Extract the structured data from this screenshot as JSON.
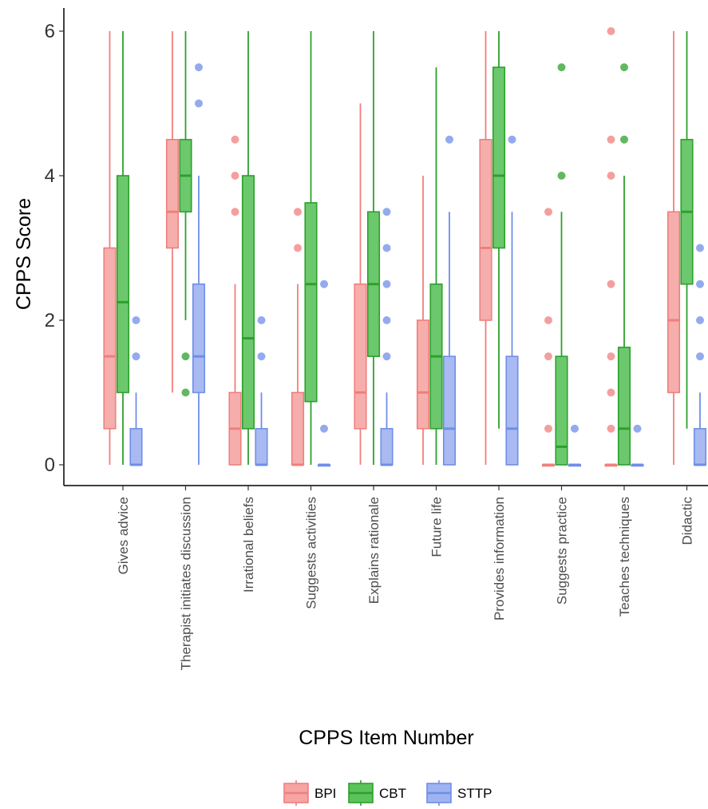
{
  "chart_data": {
    "type": "boxplot",
    "xlabel": "CPPS Item Number",
    "ylabel": "CPPS Score",
    "ylim": [
      0,
      6
    ],
    "yticks": [
      0,
      2,
      4,
      6
    ],
    "grid": false,
    "legend_position": "bottom",
    "categories": [
      "Gives advice",
      "Therapist initiates discussion",
      "Irrational beliefs",
      "Suggests activities",
      "Explains rationale",
      "Future life",
      "Provides information",
      "Suggests practice",
      "Teaches techniques",
      "Didactic"
    ],
    "series": [
      {
        "name": "BPI",
        "color": "#f07f7d",
        "fill": "#f5a5a3",
        "boxes": [
          {
            "min": 0,
            "q1": 0.5,
            "median": 1.5,
            "q3": 3,
            "max": 6,
            "outliers": []
          },
          {
            "min": 1,
            "q1": 3,
            "median": 3.5,
            "q3": 4.5,
            "max": 6,
            "outliers": []
          },
          {
            "min": 0,
            "q1": 0,
            "median": 0.5,
            "q3": 1,
            "max": 2.5,
            "outliers": [
              3.5,
              4,
              4.5
            ]
          },
          {
            "min": 0,
            "q1": 0,
            "median": 0,
            "q3": 1,
            "max": 2.5,
            "outliers": [
              3,
              3.5
            ]
          },
          {
            "min": 0,
            "q1": 0.5,
            "median": 1,
            "q3": 2.5,
            "max": 5,
            "outliers": []
          },
          {
            "min": 0,
            "q1": 0.5,
            "median": 1,
            "q3": 2,
            "max": 4,
            "outliers": []
          },
          {
            "min": 0,
            "q1": 2,
            "median": 3,
            "q3": 4.5,
            "max": 6,
            "outliers": []
          },
          {
            "min": 0,
            "q1": 0,
            "median": 0,
            "q3": 0,
            "max": 0,
            "outliers": [
              0.5,
              1.5,
              2,
              3.5
            ]
          },
          {
            "min": 0,
            "q1": 0,
            "median": 0,
            "q3": 0,
            "max": 0,
            "outliers": [
              0.5,
              1,
              1.5,
              2.5,
              4,
              4.5,
              6
            ]
          },
          {
            "min": 0,
            "q1": 1,
            "median": 2,
            "q3": 3.5,
            "max": 6,
            "outliers": []
          }
        ]
      },
      {
        "name": "CBT",
        "color": "#2ca02c",
        "fill": "#5cc25c",
        "boxes": [
          {
            "min": 0,
            "q1": 1,
            "median": 2.25,
            "q3": 4,
            "max": 6,
            "outliers": []
          },
          {
            "min": 2,
            "q1": 3.5,
            "median": 4,
            "q3": 4.5,
            "max": 6,
            "outliers": [
              1,
              1.5
            ]
          },
          {
            "min": 0,
            "q1": 0.5,
            "median": 1.75,
            "q3": 4,
            "max": 6,
            "outliers": []
          },
          {
            "min": 0,
            "q1": 0.875,
            "median": 2.5,
            "q3": 3.625,
            "max": 6,
            "outliers": []
          },
          {
            "min": 0,
            "q1": 1.5,
            "median": 2.5,
            "q3": 3.5,
            "max": 6,
            "outliers": []
          },
          {
            "min": 0,
            "q1": 0.5,
            "median": 1.5,
            "q3": 2.5,
            "max": 5.5,
            "outliers": []
          },
          {
            "min": 0.5,
            "q1": 3,
            "median": 4,
            "q3": 5.5,
            "max": 6,
            "outliers": []
          },
          {
            "min": 0,
            "q1": 0,
            "median": 0.25,
            "q3": 1.5,
            "max": 3.5,
            "outliers": [
              4,
              5.5
            ]
          },
          {
            "min": 0,
            "q1": 0,
            "median": 0.5,
            "q3": 1.625,
            "max": 4,
            "outliers": [
              4.5,
              5.5
            ]
          },
          {
            "min": 0.5,
            "q1": 2.5,
            "median": 3.5,
            "q3": 4.5,
            "max": 6,
            "outliers": []
          }
        ]
      },
      {
        "name": "STTP",
        "color": "#6f8ee8",
        "fill": "#9eb3f0",
        "boxes": [
          {
            "min": 0,
            "q1": 0,
            "median": 0,
            "q3": 0.5,
            "max": 1,
            "outliers": [
              1.5,
              2
            ]
          },
          {
            "min": 0,
            "q1": 1,
            "median": 1.5,
            "q3": 2.5,
            "max": 4,
            "outliers": [
              5,
              5.5
            ]
          },
          {
            "min": 0,
            "q1": 0,
            "median": 0,
            "q3": 0.5,
            "max": 1,
            "outliers": [
              1.5,
              2
            ]
          },
          {
            "min": 0,
            "q1": 0,
            "median": 0,
            "q3": 0,
            "max": 0,
            "outliers": [
              0.5,
              2.5
            ]
          },
          {
            "min": 0,
            "q1": 0,
            "median": 0,
            "q3": 0.5,
            "max": 1,
            "outliers": [
              1.5,
              2,
              2.5,
              3,
              3.5
            ]
          },
          {
            "min": 0,
            "q1": 0,
            "median": 0.5,
            "q3": 1.5,
            "max": 3.5,
            "outliers": [
              4.5
            ]
          },
          {
            "min": 0,
            "q1": 0,
            "median": 0.5,
            "q3": 1.5,
            "max": 3.5,
            "outliers": [
              4.5
            ]
          },
          {
            "min": 0,
            "q1": 0,
            "median": 0,
            "q3": 0,
            "max": 0,
            "outliers": [
              0.5
            ]
          },
          {
            "min": 0,
            "q1": 0,
            "median": 0,
            "q3": 0,
            "max": 0,
            "outliers": [
              0.5
            ]
          },
          {
            "min": 0,
            "q1": 0,
            "median": 0,
            "q3": 0.5,
            "max": 1,
            "outliers": [
              1.5,
              2,
              2.5,
              3
            ]
          }
        ]
      }
    ]
  }
}
